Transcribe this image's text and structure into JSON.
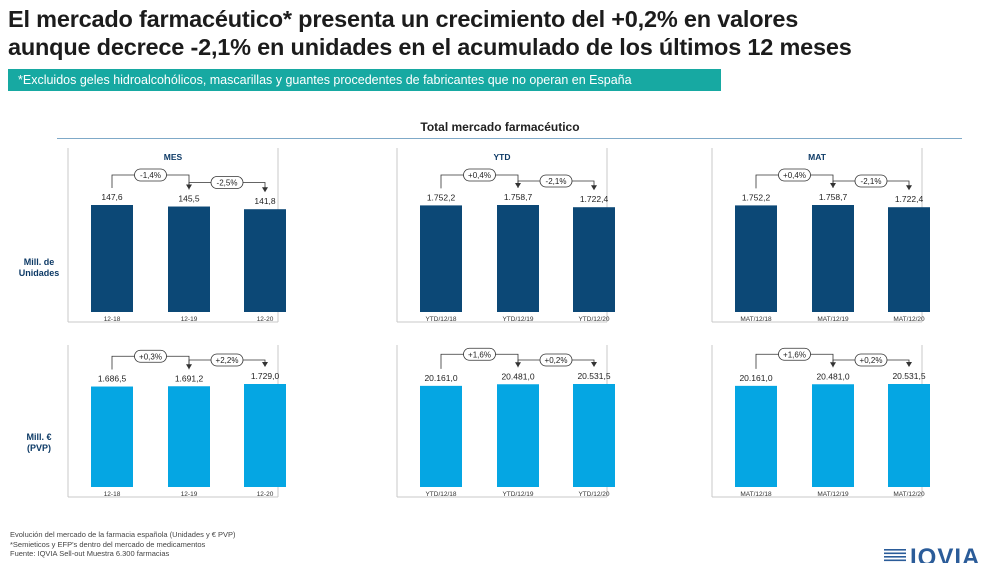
{
  "title_line1": "El mercado farmacéutico* presenta un crecimiento del +0,2% en valores",
  "title_line2": "aunque decrece -2,1% en unidades en el acumulado de los últimos 12 meses",
  "banner": "*Excluidos geles hidroalcohólicos, mascarillas y guantes procedentes de fabricantes que no operan en España",
  "section_title": "Total mercado farmacéutico",
  "row_labels": {
    "units_line1": "Mill. de",
    "units_line2": "Unidades",
    "value_line1": "Mill. €",
    "value_line2": "(PVP)"
  },
  "footer": {
    "line1": "Evolución del mercado de la farmacia española (Unidades y € PVP)",
    "line2": "*Semieticos y EFP's dentro del mercado de medicamentos",
    "line3": "Fuente: IQVIA Sell-out Muestra 6.300 farmacias"
  },
  "logo": "IQVIA",
  "colors": {
    "units_bar": "#0c4876",
    "value_bar": "#05a6e3",
    "banner": "#17a9a2",
    "brand": "#2b5c99"
  },
  "chart_data": [
    {
      "type": "bar",
      "title": "MES",
      "row": "Mill. de Unidades",
      "categories": [
        "12-18",
        "12-19",
        "12-20"
      ],
      "values": [
        147.6,
        145.5,
        141.8
      ],
      "labels": [
        "147,6",
        "145,5",
        "141,8"
      ],
      "changes": [
        "-1,4%",
        "-2,5%"
      ],
      "color": "#0c4876"
    },
    {
      "type": "bar",
      "title": "YTD",
      "row": "Mill. de Unidades",
      "categories": [
        "YTD/12/18",
        "YTD/12/19",
        "YTD/12/20"
      ],
      "values": [
        1752.2,
        1758.7,
        1722.4
      ],
      "labels": [
        "1.752,2",
        "1.758,7",
        "1.722,4"
      ],
      "changes": [
        "+0,4%",
        "-2,1%"
      ],
      "color": "#0c4876"
    },
    {
      "type": "bar",
      "title": "MAT",
      "row": "Mill. de Unidades",
      "categories": [
        "MAT/12/18",
        "MAT/12/19",
        "MAT/12/20"
      ],
      "values": [
        1752.2,
        1758.7,
        1722.4
      ],
      "labels": [
        "1.752,2",
        "1.758,7",
        "1.722,4"
      ],
      "changes": [
        "+0,4%",
        "-2,1%"
      ],
      "color": "#0c4876"
    },
    {
      "type": "bar",
      "title": "",
      "row": "Mill. € (PVP)",
      "categories": [
        "12-18",
        "12-19",
        "12-20"
      ],
      "values": [
        1686.5,
        1691.2,
        1729.0
      ],
      "labels": [
        "1.686,5",
        "1.691,2",
        "1.729,0"
      ],
      "changes": [
        "+0,3%",
        "+2,2%"
      ],
      "color": "#05a6e3"
    },
    {
      "type": "bar",
      "title": "",
      "row": "Mill. € (PVP)",
      "categories": [
        "YTD/12/18",
        "YTD/12/19",
        "YTD/12/20"
      ],
      "values": [
        20161.0,
        20481.0,
        20531.5
      ],
      "labels": [
        "20.161,0",
        "20.481,0",
        "20.531,5"
      ],
      "changes": [
        "+1,6%",
        "+0,2%"
      ],
      "color": "#05a6e3"
    },
    {
      "type": "bar",
      "title": "",
      "row": "Mill. € (PVP)",
      "categories": [
        "MAT/12/18",
        "MAT/12/19",
        "MAT/12/20"
      ],
      "values": [
        20161.0,
        20481.0,
        20531.5
      ],
      "labels": [
        "20.161,0",
        "20.481,0",
        "20.531,5"
      ],
      "changes": [
        "+1,6%",
        "+0,2%"
      ],
      "color": "#05a6e3"
    }
  ]
}
